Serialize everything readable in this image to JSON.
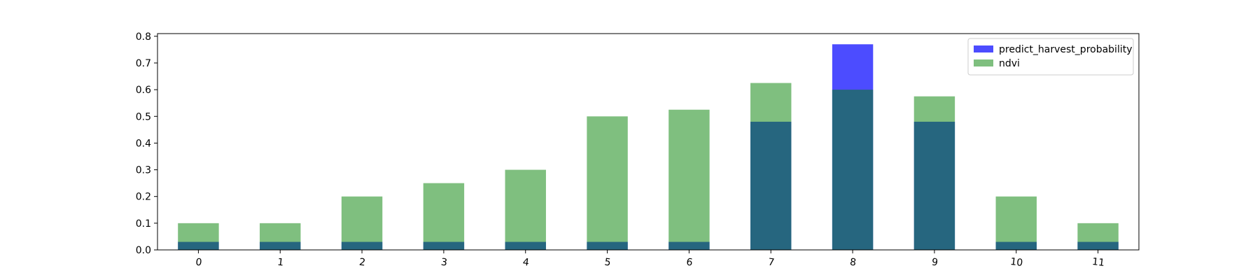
{
  "chart_data": {
    "type": "bar",
    "categories": [
      "0",
      "1",
      "2",
      "3",
      "4",
      "5",
      "6",
      "7",
      "8",
      "9",
      "10",
      "11"
    ],
    "series": [
      {
        "name": "predict_harvest_probability",
        "values": [
          0.03,
          0.03,
          0.03,
          0.03,
          0.03,
          0.03,
          0.03,
          0.48,
          0.77,
          0.48,
          0.03,
          0.03
        ],
        "color": "#0000ff",
        "opacity": 0.7
      },
      {
        "name": "ndvi",
        "values": [
          0.1,
          0.1,
          0.2,
          0.25,
          0.3,
          0.5,
          0.525,
          0.625,
          0.6,
          0.575,
          0.2,
          0.1
        ],
        "color": "#008000",
        "opacity": 0.5
      }
    ],
    "ylim": [
      0,
      0.81
    ],
    "yticks": [
      "0.0",
      "0.1",
      "0.2",
      "0.3",
      "0.4",
      "0.5",
      "0.6",
      "0.7",
      "0.8"
    ],
    "xlabel": "",
    "ylabel": "",
    "title": "",
    "grid": false,
    "legend_position": "top-right",
    "x_tick_rotation": "slight"
  }
}
